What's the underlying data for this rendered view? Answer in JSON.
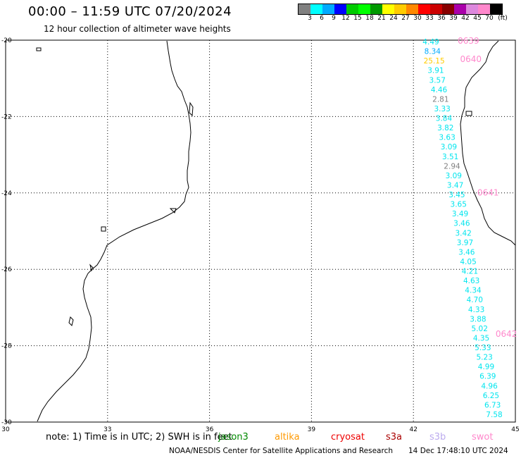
{
  "header": {
    "title": "00:00 – 11:59 UTC 07/20/2024",
    "subtitle": "12 hour collection of altimeter wave heights"
  },
  "colorbar": {
    "colors": [
      "#808080",
      "#00ffff",
      "#00aaff",
      "#0000ff",
      "#00cc00",
      "#00ff00",
      "#009900",
      "#ffff00",
      "#ffcc00",
      "#ff8800",
      "#ff0000",
      "#cc0000",
      "#880000",
      "#aa00aa",
      "#dd88dd",
      "#ff88cc",
      "#000000"
    ],
    "labels": [
      "3",
      "6",
      "9",
      "12",
      "15",
      "18",
      "21",
      "24",
      "27",
      "30",
      "33",
      "36",
      "39",
      "42",
      "45",
      "70",
      "(ft)"
    ]
  },
  "axes": {
    "lon_ticks": [
      "30",
      "33",
      "36",
      "39",
      "42",
      "45"
    ],
    "lat_ticks": [
      "-20",
      "-22",
      "-24",
      "-26",
      "-28",
      "-30"
    ]
  },
  "track": {
    "hour_labels": [
      {
        "text": "0639",
        "lat": -20.02
      },
      {
        "text": "0640",
        "lat": -20.5
      },
      {
        "text": "0641",
        "lat": -23.99
      },
      {
        "text": "0642",
        "lat": -27.69
      }
    ],
    "readings": [
      {
        "v": "4.49",
        "c": "#00e5ee"
      },
      {
        "v": "8.34",
        "c": "#00aaff"
      },
      {
        "v": "25.15",
        "c": "#ffcc00"
      },
      {
        "v": "3.91",
        "c": "#00e5ee"
      },
      {
        "v": "3.57",
        "c": "#00e5ee"
      },
      {
        "v": "4.46",
        "c": "#00e5ee"
      },
      {
        "v": "2.81",
        "c": "#808080"
      },
      {
        "v": "3.33",
        "c": "#00e5ee"
      },
      {
        "v": "3.84",
        "c": "#00e5ee"
      },
      {
        "v": "3.82",
        "c": "#00e5ee"
      },
      {
        "v": "3.63",
        "c": "#00e5ee"
      },
      {
        "v": "3.09",
        "c": "#00e5ee"
      },
      {
        "v": "3.51",
        "c": "#00e5ee"
      },
      {
        "v": "2.94",
        "c": "#808080"
      },
      {
        "v": "3.09",
        "c": "#00e5ee"
      },
      {
        "v": "3.47",
        "c": "#00e5ee"
      },
      {
        "v": "3.45",
        "c": "#00e5ee"
      },
      {
        "v": "3.65",
        "c": "#00e5ee"
      },
      {
        "v": "3.49",
        "c": "#00e5ee"
      },
      {
        "v": "3.46",
        "c": "#00e5ee"
      },
      {
        "v": "3.42",
        "c": "#00e5ee"
      },
      {
        "v": "3.97",
        "c": "#00e5ee"
      },
      {
        "v": "3.46",
        "c": "#00e5ee"
      },
      {
        "v": "4.05",
        "c": "#00e5ee"
      },
      {
        "v": "4.21",
        "c": "#00e5ee"
      },
      {
        "v": "4.63",
        "c": "#00e5ee"
      },
      {
        "v": "4.34",
        "c": "#00e5ee"
      },
      {
        "v": "4.70",
        "c": "#00e5ee"
      },
      {
        "v": "4.33",
        "c": "#00e5ee"
      },
      {
        "v": "3.88",
        "c": "#00e5ee"
      },
      {
        "v": "5.02",
        "c": "#00e5ee"
      },
      {
        "v": "4.35",
        "c": "#00e5ee"
      },
      {
        "v": "5.33",
        "c": "#00e5ee"
      },
      {
        "v": "5.23",
        "c": "#00e5ee"
      },
      {
        "v": "4.99",
        "c": "#00e5ee"
      },
      {
        "v": "6.39",
        "c": "#00e5ee"
      },
      {
        "v": "4.96",
        "c": "#00e5ee"
      },
      {
        "v": "6.25",
        "c": "#00e5ee"
      },
      {
        "v": "6.73",
        "c": "#00e5ee"
      },
      {
        "v": "7.58",
        "c": "#00e5ee"
      }
    ]
  },
  "legend": {
    "note": "note: 1) Time is in UTC; 2) SWH is in feet",
    "satellites": [
      {
        "name": "jason3",
        "color": "#008800"
      },
      {
        "name": "altika",
        "color": "#ff9900"
      },
      {
        "name": "cryosat",
        "color": "#ee0000"
      },
      {
        "name": "s3a",
        "color": "#aa0000"
      },
      {
        "name": "s3b",
        "color": "#bbaaee"
      },
      {
        "name": "swot",
        "color": "#ff88cc"
      }
    ]
  },
  "footer": {
    "credit": "NOAA/NESDIS Center for Satellite Applications and Research",
    "timestamp": "14 Dec 17:48:10 UTC 2024"
  }
}
